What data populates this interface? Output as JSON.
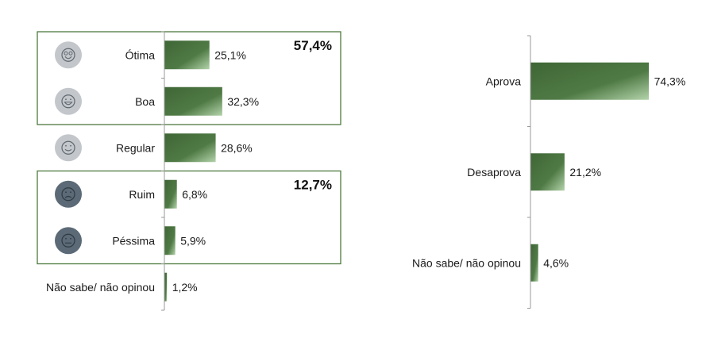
{
  "chart_data": [
    {
      "type": "bar",
      "orientation": "horizontal",
      "categories": [
        "Ótima",
        "Boa",
        "Regular",
        "Ruim",
        "Péssima",
        "Não sabe/ não opinou"
      ],
      "values": [
        25.1,
        32.3,
        28.6,
        6.8,
        5.9,
        1.2
      ],
      "value_labels": [
        "25,1%",
        "32,3%",
        "28,6%",
        "6,8%",
        "5,9%",
        "1,2%"
      ],
      "icons": [
        "very-happy-face-icon",
        "happy-face-icon",
        "neutral-smile-face-icon",
        "sad-face-icon",
        "neutral-face-icon",
        ""
      ],
      "groups": [
        {
          "label": "57,4%",
          "members": [
            0,
            1
          ]
        },
        {
          "label": "12,7%",
          "members": [
            3,
            4
          ]
        }
      ],
      "xlim": [
        0,
        100
      ],
      "colors": {
        "bar_dark": "#3f6636",
        "bar_light": "#a8c9a0",
        "icon_light": "#c3c7cb",
        "icon_dark": "#5b6a76",
        "group_border": "#4d7a3e"
      }
    },
    {
      "type": "bar",
      "orientation": "horizontal",
      "categories": [
        "Aprova",
        "Desaprova",
        "Não sabe/ não opinou"
      ],
      "values": [
        74.3,
        21.2,
        4.6
      ],
      "value_labels": [
        "74,3%",
        "21,2%",
        "4,6%"
      ],
      "xlim": [
        0,
        100
      ]
    }
  ]
}
